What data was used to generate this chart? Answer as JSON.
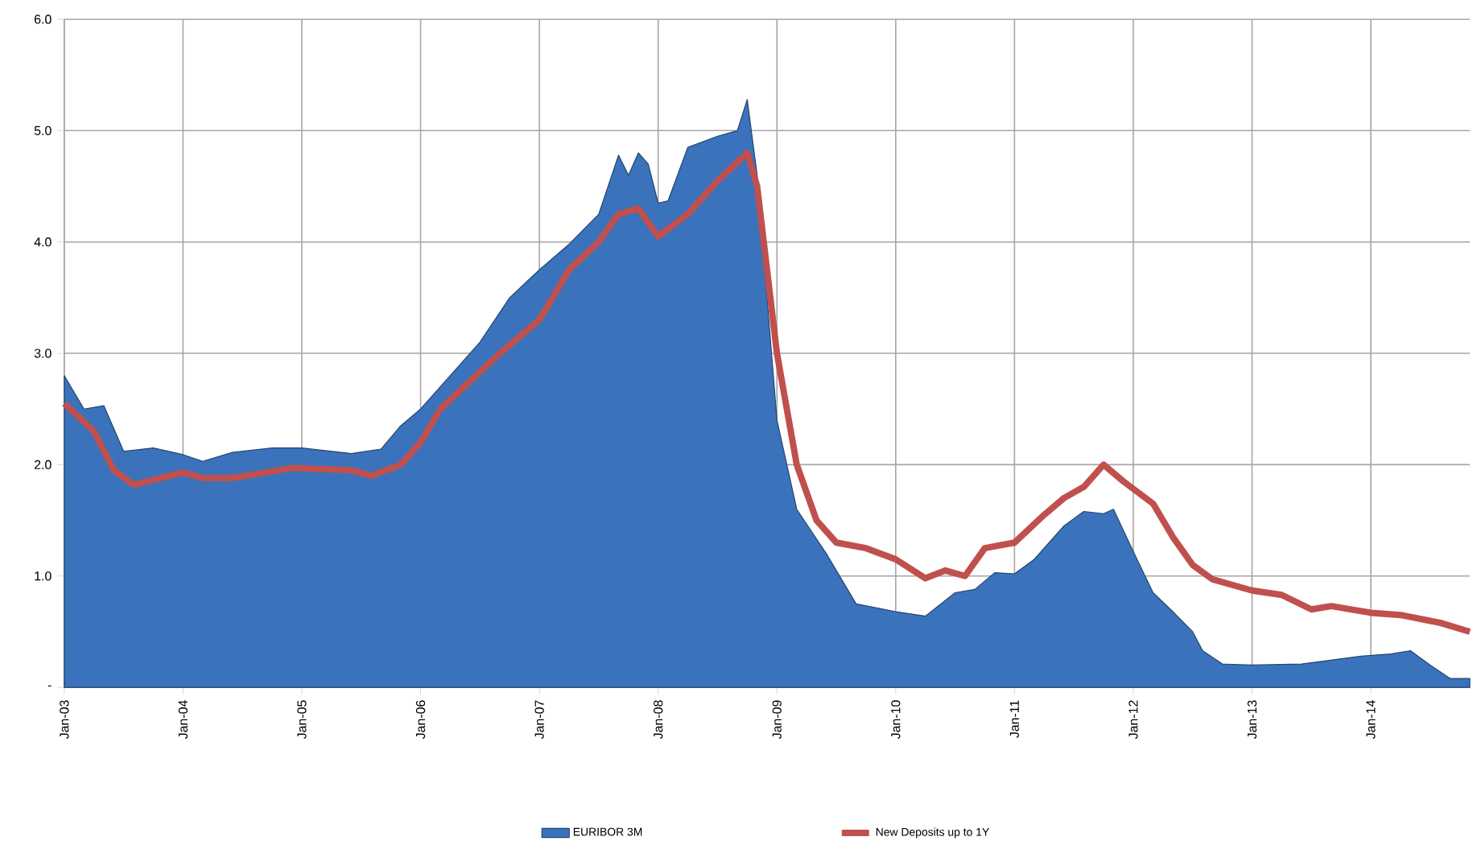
{
  "chart_data": {
    "type": "area",
    "x": [
      "2003-01",
      "2003-03",
      "2003-05",
      "2003-07",
      "2003-10",
      "2004-01",
      "2004-03",
      "2004-06",
      "2004-10",
      "2005-01",
      "2005-06",
      "2005-09",
      "2005-11",
      "2006-01",
      "2006-04",
      "2006-07",
      "2006-10",
      "2007-01",
      "2007-04",
      "2007-07",
      "2007-09",
      "2007-10",
      "2007-11",
      "2007-12",
      "2008-01",
      "2008-02",
      "2008-04",
      "2008-07",
      "2008-09",
      "2008-10",
      "2008-11",
      "2009-01",
      "2009-03",
      "2009-06",
      "2009-09",
      "2010-01",
      "2010-04",
      "2010-07",
      "2010-09",
      "2010-11",
      "2011-01",
      "2011-03",
      "2011-06",
      "2011-08",
      "2011-10",
      "2011-11",
      "2012-01",
      "2012-03",
      "2012-05",
      "2012-07",
      "2012-08",
      "2012-10",
      "2013-01",
      "2013-06",
      "2013-12",
      "2014-03",
      "2014-05",
      "2014-07",
      "2014-09",
      "2014-11"
    ],
    "series": [
      {
        "name": "EURIBOR 3M",
        "color": "#3a73bb",
        "values": [
          2.8,
          2.5,
          2.53,
          2.12,
          2.15,
          2.09,
          2.03,
          2.11,
          2.15,
          2.15,
          2.1,
          2.14,
          2.35,
          2.5,
          2.8,
          3.1,
          3.5,
          3.75,
          3.98,
          4.25,
          4.78,
          4.6,
          4.8,
          4.7,
          4.35,
          4.37,
          4.85,
          4.95,
          5.0,
          5.28,
          4.6,
          2.4,
          1.6,
          1.2,
          0.75,
          0.68,
          0.64,
          0.85,
          0.88,
          1.03,
          1.02,
          1.15,
          1.45,
          1.58,
          1.56,
          1.6,
          1.22,
          0.85,
          0.68,
          0.5,
          0.33,
          0.21,
          0.2,
          0.21,
          0.28,
          0.3,
          0.33,
          0.2,
          0.08,
          0.08
        ]
      },
      {
        "name": "New Deposits up to 1Y",
        "type": "line",
        "color": "#c0504d",
        "x": [
          "2003-01",
          "2003-04",
          "2003-06",
          "2003-08",
          "2004-01",
          "2004-03",
          "2004-06",
          "2004-12",
          "2005-06",
          "2005-08",
          "2005-11",
          "2006-01",
          "2006-03",
          "2006-06",
          "2006-09",
          "2007-01",
          "2007-04",
          "2007-07",
          "2007-09",
          "2007-11",
          "2008-01",
          "2008-04",
          "2008-07",
          "2008-10",
          "2008-11",
          "2009-01",
          "2009-03",
          "2009-05",
          "2009-07",
          "2009-10",
          "2010-01",
          "2010-04",
          "2010-06",
          "2010-08",
          "2010-10",
          "2011-01",
          "2011-04",
          "2011-06",
          "2011-08",
          "2011-10",
          "2011-12",
          "2012-03",
          "2012-05",
          "2012-07",
          "2012-09",
          "2013-01",
          "2013-04",
          "2013-07",
          "2013-09",
          "2014-01",
          "2014-04",
          "2014-08",
          "2014-11"
        ],
        "values": [
          2.55,
          2.3,
          1.95,
          1.82,
          1.93,
          1.88,
          1.88,
          1.97,
          1.95,
          1.9,
          2.0,
          2.2,
          2.5,
          2.75,
          3.0,
          3.3,
          3.75,
          4.0,
          4.25,
          4.3,
          4.05,
          4.25,
          4.55,
          4.8,
          4.5,
          3.0,
          2.0,
          1.5,
          1.3,
          1.25,
          1.15,
          0.98,
          1.05,
          1.0,
          1.25,
          1.3,
          1.55,
          1.7,
          1.8,
          2.0,
          1.85,
          1.65,
          1.35,
          1.1,
          0.97,
          0.87,
          0.83,
          0.7,
          0.73,
          0.67,
          0.65,
          0.58,
          0.5
        ]
      }
    ],
    "xlim": [
      "2003-01",
      "2014-11"
    ],
    "xticks": [
      {
        "value": "2003-01",
        "label": "Jan-03"
      },
      {
        "value": "2004-01",
        "label": "Jan-04"
      },
      {
        "value": "2005-01",
        "label": "Jan-05"
      },
      {
        "value": "2006-01",
        "label": "Jan-06"
      },
      {
        "value": "2007-01",
        "label": "Jan-07"
      },
      {
        "value": "2008-01",
        "label": "Jan-08"
      },
      {
        "value": "2009-01",
        "label": "Jan-09"
      },
      {
        "value": "2010-01",
        "label": "Jan-10"
      },
      {
        "value": "2011-01",
        "label": "Jan-11"
      },
      {
        "value": "2012-01",
        "label": "Jan-12"
      },
      {
        "value": "2013-01",
        "label": "Jan-13"
      },
      {
        "value": "2014-01",
        "label": "Jan-14"
      }
    ],
    "ylim": [
      0,
      6
    ],
    "yticks": [
      {
        "value": 0,
        "label": "-"
      },
      {
        "value": 1,
        "label": "1.0"
      },
      {
        "value": 2,
        "label": "2.0"
      },
      {
        "value": 3,
        "label": "3.0"
      },
      {
        "value": 4,
        "label": "4.0"
      },
      {
        "value": 5,
        "label": "5.0"
      },
      {
        "value": 6,
        "label": "6.0"
      }
    ],
    "grid": true,
    "legend": "bottom"
  }
}
